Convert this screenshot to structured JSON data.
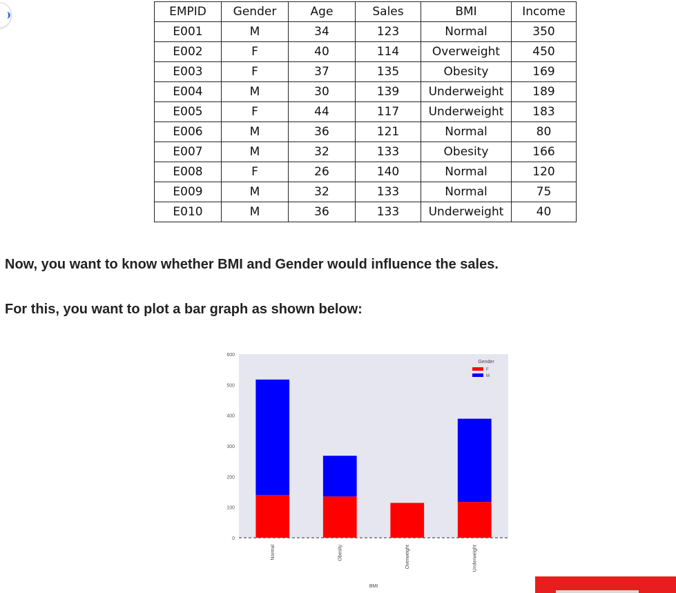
{
  "table": {
    "headers": [
      "EMPID",
      "Gender",
      "Age",
      "Sales",
      "BMI",
      "Income"
    ],
    "rows": [
      [
        "E001",
        "M",
        "34",
        "123",
        "Normal",
        "350"
      ],
      [
        "E002",
        "F",
        "40",
        "114",
        "Overweight",
        "450"
      ],
      [
        "E003",
        "F",
        "37",
        "135",
        "Obesity",
        "169"
      ],
      [
        "E004",
        "M",
        "30",
        "139",
        "Underweight",
        "189"
      ],
      [
        "E005",
        "F",
        "44",
        "117",
        "Underweight",
        "183"
      ],
      [
        "E006",
        "M",
        "36",
        "121",
        "Normal",
        "80"
      ],
      [
        "E007",
        "M",
        "32",
        "133",
        "Obesity",
        "166"
      ],
      [
        "E008",
        "F",
        "26",
        "140",
        "Normal",
        "120"
      ],
      [
        "E009",
        "M",
        "32",
        "133",
        "Normal",
        "75"
      ],
      [
        "E010",
        "M",
        "36",
        "133",
        "Underweight",
        "40"
      ]
    ]
  },
  "paragraphs": {
    "p1": "Now, you want to know whether BMI and Gender would influence the sales.",
    "p2": "For this, you want to plot a bar graph as shown below:"
  },
  "chart_data": {
    "type": "bar",
    "stacked": true,
    "categories": [
      "Normal",
      "Obesity",
      "Overweight",
      "Underweight"
    ],
    "series": [
      {
        "name": "F",
        "color": "#ff0000",
        "values": [
          140,
          135,
          114,
          117
        ]
      },
      {
        "name": "M",
        "color": "#0000ff",
        "values": [
          377,
          133,
          0,
          272
        ]
      }
    ],
    "xlabel": "BMI",
    "ylabel": "",
    "ylim": [
      0,
      600
    ],
    "yticks": [
      0,
      100,
      200,
      300,
      400,
      500,
      600
    ],
    "legend": {
      "title": "Gender",
      "position": "top-right"
    },
    "background": "#e6e6f0",
    "grid": false
  }
}
